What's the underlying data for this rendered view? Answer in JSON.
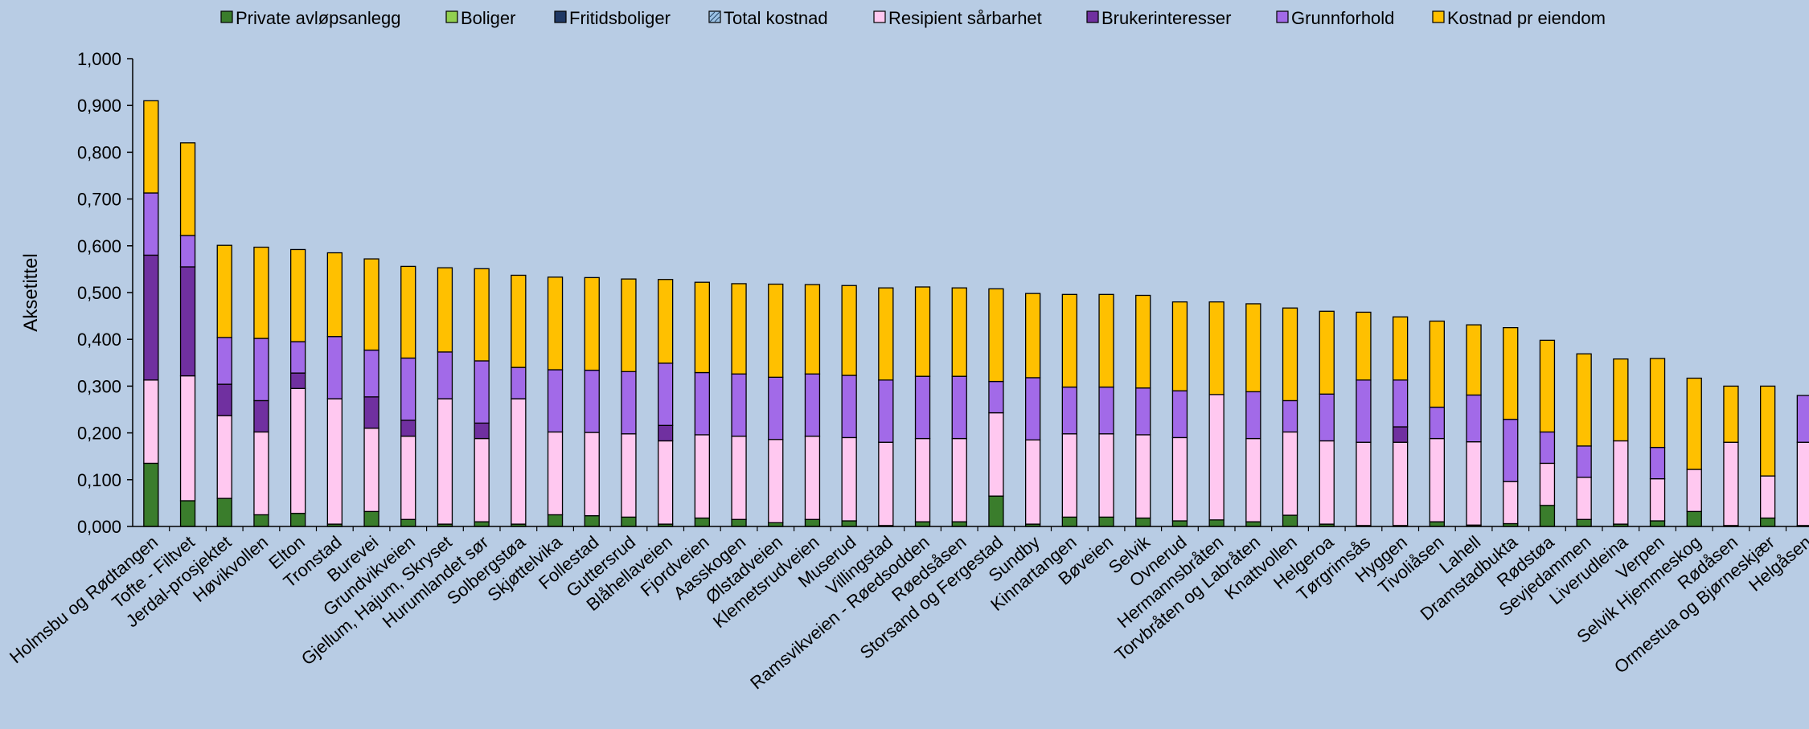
{
  "chart_data": {
    "type": "bar",
    "stacked": true,
    "ylabel": "Aksetittel",
    "ylim": [
      0,
      1.0
    ],
    "yticks": [
      "0,000",
      "0,100",
      "0,200",
      "0,300",
      "0,400",
      "0,500",
      "0,600",
      "0,700",
      "0,800",
      "0,900",
      "1,000"
    ],
    "grid": false,
    "legend_position": "top",
    "categories": [
      "Holmsbu og Rødtangen",
      "Tofte - Filtvet",
      "Jerdal-prosjektet",
      "Høvikvollen",
      "Elton",
      "Tronstad",
      "Burevei",
      "Grundvikveien",
      "Gjellum, Hajum, Skryset",
      "Hurumlandet sør",
      "Solbergstøa",
      "Skjøttelvika",
      "Follestad",
      "Guttersrud",
      "Blåhellaveien",
      "Fjordveien",
      "Aasskogen",
      "Ølstadveien",
      "Klemetsrudveien",
      "Muserud",
      "Villingstad",
      "Ramsvikveien - Røedsodden",
      "Røedsåsen",
      "Storsand og Fergestad",
      "Sundby",
      "Kinnartangen",
      "Bøveien",
      "Selvik",
      "Ovnerud",
      "Hermannsbråten",
      "Torvbråten og Labråten",
      "Knattvollen",
      "Helgeroa",
      "Tørgrimsås",
      "Hyggen",
      "Tivoliåsen",
      "Lahell",
      "Dramstadbukta",
      "Rødstøa",
      "Sevjedammen",
      "Liverudleina",
      "Verpen",
      "Selvik Hjemmeskog",
      "Rødåsen",
      "Ormestua og Bjørneskjær",
      "Helgåsen"
    ],
    "series": [
      {
        "name": "Private avløpsanlegg",
        "color": "#3a7d2c",
        "values": [
          0.135,
          0.055,
          0.06,
          0.025,
          0.028,
          0.005,
          0.032,
          0.015,
          0.005,
          0.01,
          0.005,
          0.025,
          0.023,
          0.02,
          0.005,
          0.018,
          0.015,
          0.008,
          0.015,
          0.012,
          0.002,
          0.01,
          0.01,
          0.065,
          0.005,
          0.02,
          0.02,
          0.018,
          0.012,
          0.014,
          0.01,
          0.024,
          0.005,
          0.002,
          0.002,
          0.01,
          0.003,
          0.006,
          0.045,
          0.015,
          0.005,
          0.012,
          0.032,
          0.002,
          0.018,
          0.002
        ]
      },
      {
        "name": "Boliger",
        "color": "#92d050",
        "values": [
          0,
          0,
          0,
          0,
          0,
          0,
          0,
          0,
          0,
          0,
          0,
          0,
          0,
          0,
          0,
          0,
          0,
          0,
          0,
          0,
          0,
          0,
          0,
          0,
          0,
          0,
          0,
          0,
          0,
          0,
          0,
          0,
          0,
          0,
          0,
          0,
          0,
          0,
          0,
          0,
          0,
          0,
          0,
          0,
          0,
          0
        ]
      },
      {
        "name": "Fritidsboliger",
        "color": "#1f3864",
        "values": [
          0,
          0,
          0,
          0,
          0,
          0,
          0,
          0,
          0,
          0,
          0,
          0,
          0,
          0,
          0,
          0,
          0,
          0,
          0,
          0,
          0,
          0,
          0,
          0,
          0,
          0,
          0,
          0,
          0,
          0,
          0,
          0,
          0,
          0,
          0,
          0,
          0,
          0,
          0,
          0,
          0,
          0,
          0,
          0,
          0,
          0
        ]
      },
      {
        "name": "Total kostnad",
        "color": "#9dc3e6",
        "values": [
          0,
          0,
          0,
          0,
          0,
          0,
          0,
          0,
          0,
          0,
          0,
          0,
          0,
          0,
          0,
          0,
          0,
          0,
          0,
          0,
          0,
          0,
          0,
          0,
          0,
          0,
          0,
          0,
          0,
          0,
          0,
          0,
          0,
          0,
          0,
          0,
          0,
          0,
          0,
          0,
          0,
          0,
          0,
          0,
          0,
          0
        ]
      },
      {
        "name": "Resipient sårbarhet",
        "color": "#ffc8f0",
        "values": [
          0.178,
          0.267,
          0.177,
          0.177,
          0.267,
          0.268,
          0.178,
          0.178,
          0.268,
          0.178,
          0.268,
          0.177,
          0.178,
          0.178,
          0.178,
          0.178,
          0.178,
          0.178,
          0.178,
          0.178,
          0.178,
          0.178,
          0.178,
          0.178,
          0.18,
          0.178,
          0.178,
          0.178,
          0.178,
          0.268,
          0.178,
          0.178,
          0.178,
          0.178,
          0.178,
          0.178,
          0.178,
          0.09,
          0.09,
          0.09,
          0.178,
          0.09,
          0.09,
          0.178,
          0.09,
          0.178
        ]
      },
      {
        "name": "Brukerinteresser",
        "color": "#7030a0",
        "values": [
          0.267,
          0.233,
          0.067,
          0.067,
          0.033,
          0,
          0.067,
          0.034,
          0,
          0.033,
          0,
          0,
          0,
          0,
          0.033,
          0,
          0,
          0,
          0,
          0,
          0,
          0,
          0,
          0,
          0,
          0,
          0,
          0,
          0,
          0,
          0,
          0,
          0,
          0,
          0.033,
          0,
          0,
          0,
          0,
          0,
          0,
          0,
          0,
          0,
          0,
          0
        ]
      },
      {
        "name": "Grunnforhold",
        "color": "#a26ae8",
        "values": [
          0.133,
          0.067,
          0.1,
          0.133,
          0.067,
          0.133,
          0.1,
          0.133,
          0.1,
          0.133,
          0.067,
          0.133,
          0.133,
          0.133,
          0.133,
          0.133,
          0.133,
          0.133,
          0.133,
          0.133,
          0.133,
          0.133,
          0.133,
          0.067,
          0.133,
          0.1,
          0.1,
          0.1,
          0.1,
          0,
          0.1,
          0.067,
          0.1,
          0.133,
          0.1,
          0.067,
          0.1,
          0.133,
          0.067,
          0.067,
          0,
          0.067,
          0,
          0,
          0,
          0.1
        ]
      },
      {
        "name": "Kostnad pr eiendom",
        "color": "#ffc000",
        "values": [
          0.197,
          0.198,
          0.197,
          0.195,
          0.197,
          0.179,
          0.195,
          0.196,
          0.18,
          0.197,
          0.197,
          0.198,
          0.198,
          0.198,
          0.179,
          0.193,
          0.193,
          0.199,
          0.191,
          0.192,
          0.197,
          0.191,
          0.189,
          0.198,
          0.18,
          0.198,
          0.198,
          0.198,
          0.19,
          0.198,
          0.188,
          0.198,
          0.177,
          0.145,
          0.135,
          0.184,
          0.15,
          0.196,
          0.196,
          0.197,
          0.175,
          0.19,
          0.195,
          0.12,
          0.192,
          0
        ]
      }
    ]
  }
}
